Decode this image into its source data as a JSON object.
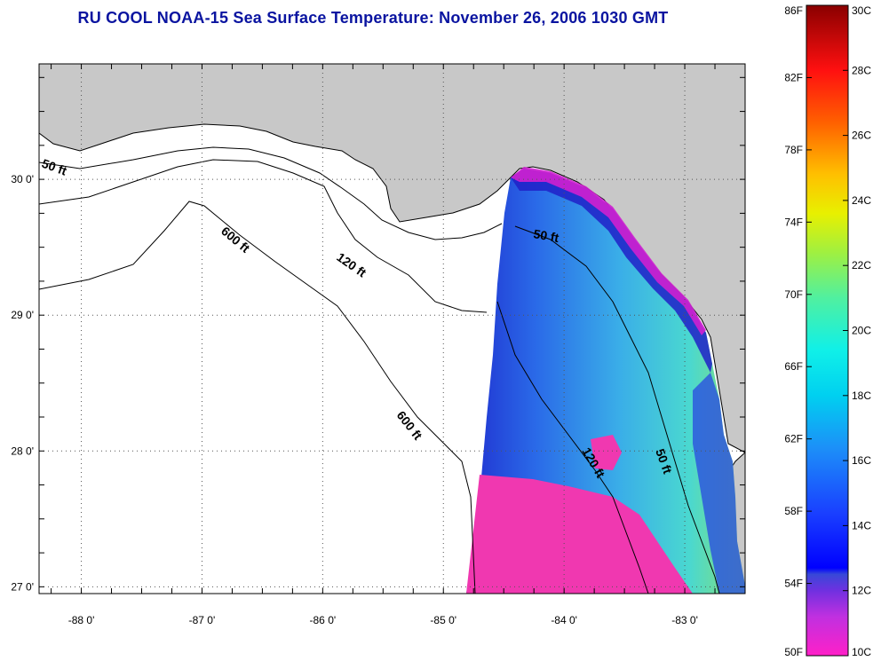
{
  "title": "RU COOL  NOAA-15  Sea Surface Temperature:  November 26, 2006 1030 GMT",
  "map": {
    "lat_ticks": [
      "30 0'",
      "29 0'",
      "28 0'",
      "27 0'"
    ],
    "lon_ticks": [
      "-88 0'",
      "-87 0'",
      "-86 0'",
      "-85 0'",
      "-84 0'",
      "-83 0'"
    ],
    "lat_values": [
      30,
      29,
      28,
      27
    ],
    "lon_values": [
      -88,
      -87,
      -86,
      -85,
      -84,
      -83
    ],
    "lat_range": [
      26.95,
      30.85
    ],
    "lon_range": [
      -88.35,
      -82.5
    ],
    "contour_labels": [
      "50 ft",
      "120 ft",
      "600 ft",
      "600 ft",
      "50 ft",
      "120 ft",
      "50 ft"
    ],
    "colors": {
      "land": "#c8c8c8",
      "ocean": "#ffffff",
      "gridline": "#555555"
    }
  },
  "colorbar": {
    "fahrenheit": [
      "86F",
      "82F",
      "78F",
      "74F",
      "70F",
      "66F",
      "62F",
      "58F",
      "54F",
      "50F"
    ],
    "celsius": [
      "30C",
      "28C",
      "26C",
      "24C",
      "22C",
      "20C",
      "18C",
      "16C",
      "14C",
      "12C",
      "10C"
    ],
    "range_c": [
      10,
      30
    ]
  }
}
